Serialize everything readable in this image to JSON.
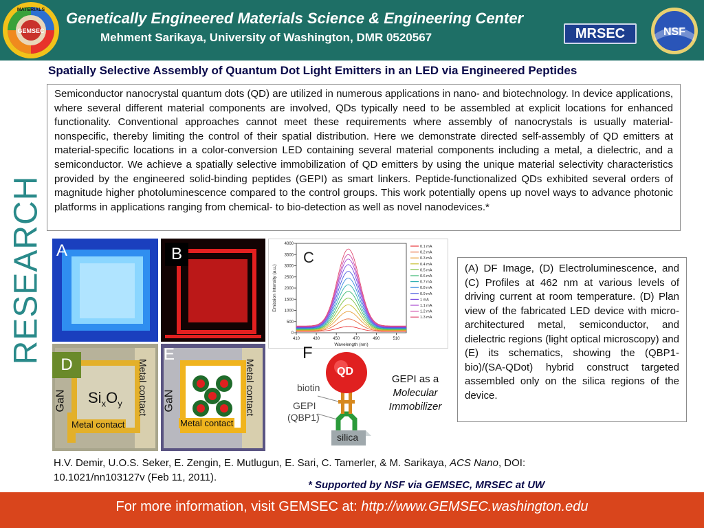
{
  "header": {
    "title": "Genetically Engineered Materials Science & Engineering Center",
    "subtitle": "Mehment  Sarikaya, University of Washington, DMR 0520567",
    "logos": {
      "gemsec": "GEMSEC",
      "gemsec_ring_top": "MATERIALS",
      "mrsec": "MRSEC",
      "nsf": "NSF"
    }
  },
  "slide_title": "Spatially Selective Assembly of Quantum Dot Light Emitters in an LED via Engineered Peptides",
  "side_label": "RESEARCH",
  "abstract": "Semiconductor nanocrystal quantum dots (QD) are utilized in numerous applications in nano- and biotechnology. In device applications, where several different material components are involved, QDs typically need to be assembled at explicit locations for enhanced functionality. Conventional approaches cannot meet these requirements where assembly of nanocrystals is usually material-nonspecific, thereby limiting the control of their spatial distribution. Here we demonstrate directed self-assembly of QD emitters at material-specific locations in a color-conversion LED containing several material components including a metal, a dielectric, and a semiconductor. We achieve a spatially selective immobilization of QD emitters by using the unique material selectivity characteristics provided by the engineered solid-binding peptides (GEPI) as smart linkers. Peptide-functionalized QDs exhibited several orders of magnitude higher photoluminescence compared to the control groups. This work potentially opens up novel ways to advance photonic platforms in applications ranging from chemical- to bio-detection as well as novel nanodevices.*",
  "figure": {
    "panels": {
      "a": "A",
      "b": "B",
      "c": "C",
      "d": "D",
      "e": "E",
      "f": "F"
    },
    "panel_d": {
      "gan": "GaN",
      "metal_contact_side": "Metal contact",
      "metal_contact_bottom": "Metal contact",
      "sixoy": "SixOy"
    },
    "panel_e": {
      "gan": "GaN",
      "metal_contact_side": "Metal contact",
      "metal_contact_bottom": "Metal contact"
    },
    "panel_f": {
      "qd": "QD",
      "biotin": "biotin",
      "gepi": "GEPI",
      "qbp1": "(QBP1)",
      "silica": "silica"
    },
    "gepi_label": {
      "line1": "GEPI as a",
      "line2": "Molecular",
      "line3": "Immobilizer"
    }
  },
  "chart_data": {
    "type": "line",
    "title": "C",
    "xlabel": "Wavelength (nm)",
    "ylabel": "Emission Intensity (a.u.)",
    "xlim": [
      410,
      520
    ],
    "ylim": [
      0,
      4000
    ],
    "x_ticks": [
      410,
      430,
      450,
      470,
      490,
      510
    ],
    "y_ticks": [
      0,
      500,
      1000,
      1500,
      2000,
      2500,
      3000,
      3500,
      4000
    ],
    "legend_position": "right",
    "peak_wavelength": 462,
    "peak_width": 11,
    "series": [
      {
        "name": "0.1 mA",
        "color": "#e8373a",
        "peak": 280,
        "baseline": 60
      },
      {
        "name": "0.2 mA",
        "color": "#e86a3a",
        "peak": 620,
        "baseline": 80
      },
      {
        "name": "0.3 mA",
        "color": "#e8a03a",
        "peak": 950,
        "baseline": 100
      },
      {
        "name": "0.4 mA",
        "color": "#c8c030",
        "peak": 1250,
        "baseline": 120
      },
      {
        "name": "0.5 mA",
        "color": "#7cc040",
        "peak": 1550,
        "baseline": 140
      },
      {
        "name": "0.6 mA",
        "color": "#3ab870",
        "peak": 1850,
        "baseline": 160
      },
      {
        "name": "0.7 mA",
        "color": "#30b0b0",
        "peak": 2150,
        "baseline": 180
      },
      {
        "name": "0.8 mA",
        "color": "#3a8ae0",
        "peak": 2450,
        "baseline": 200
      },
      {
        "name": "0.9 mA",
        "color": "#4a5ae0",
        "peak": 2750,
        "baseline": 220
      },
      {
        "name": "1 mA",
        "color": "#7a4ae0",
        "peak": 3050,
        "baseline": 240
      },
      {
        "name": "1.1 mA",
        "color": "#a84ad0",
        "peak": 3300,
        "baseline": 260
      },
      {
        "name": "1.2 mA",
        "color": "#d04aa8",
        "peak": 3500,
        "baseline": 280
      },
      {
        "name": "1.3 mA",
        "color": "#e04a70",
        "peak": 3750,
        "baseline": 300
      }
    ]
  },
  "caption": "(A) DF Image, (D) Electroluminescence, and (C) Profiles at 462 nm at various levels of driving current at room temperature. (D) Plan view of the fabricated LED device with micro-architectured metal, semiconductor, and dielectric regions (light optical microscopy) and (E) its schematics, showing the (QBP1-bio)/(SA-QDot) hybrid construct targeted assembled only on the silica regions of the device.",
  "reference": {
    "authors": "H.V. Demir,  U.O.S. Seker, E. Zengin, E. Mutlugun, E. Sari, C. Tamerler,  & M. Sarikaya, ",
    "journal": "ACS Nano",
    "rest": ", DOI: 10.1021/nn103127v (Feb 11, 2011)."
  },
  "support": "* Supported by NSF via GEMSEC, MRSEC at UW",
  "footer": {
    "text": "For more information, visit GEMSEC at: ",
    "url": "http://www.GEMSEC.washington.edu"
  },
  "colors": {
    "header_bg": "#1e6f66",
    "footer_bg": "#d9451c",
    "research_text": "#2a8a8a",
    "title_text": "#0a0a4a"
  }
}
